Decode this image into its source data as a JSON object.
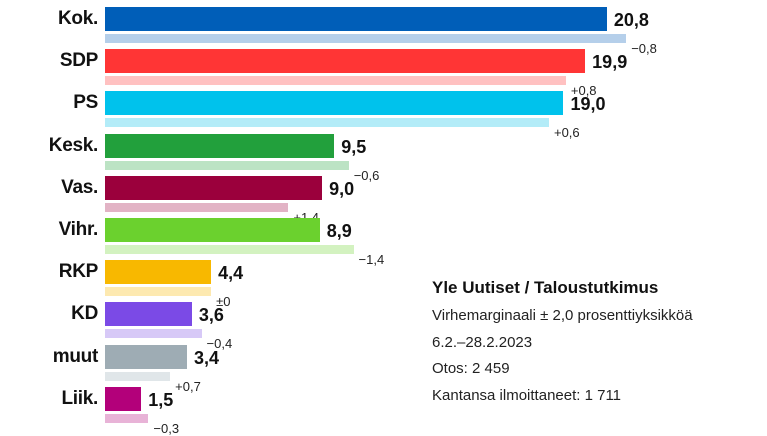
{
  "chart_data": {
    "type": "bar",
    "orientation": "horizontal",
    "categories": [
      "Kok.",
      "SDP",
      "PS",
      "Kesk.",
      "Vas.",
      "Vihr.",
      "RKP",
      "KD",
      "muut",
      "Liik."
    ],
    "values": [
      20.8,
      19.9,
      19.0,
      9.5,
      9.0,
      8.9,
      4.4,
      3.6,
      3.4,
      1.5
    ],
    "value_labels": [
      "20,8",
      "19,9",
      "19,0",
      "9,5",
      "9,0",
      "8,9",
      "4,4",
      "3,6",
      "3,4",
      "1,5"
    ],
    "changes": [
      -0.8,
      0.8,
      0.6,
      -0.6,
      1.4,
      -1.4,
      0.0,
      -0.4,
      0.7,
      -0.3
    ],
    "change_labels": [
      "−0,8",
      "+0,8",
      "+0,6",
      "−0,6",
      "+1,4",
      "−1,4",
      "±0",
      "−0,4",
      "+0,7",
      "−0,3"
    ],
    "colors": [
      "#005eb8",
      "#ff3535",
      "#00c2ec",
      "#22a03c",
      "#9b003c",
      "#6bd12e",
      "#f8b800",
      "#7b4ae6",
      "#9eacb4",
      "#b3007a"
    ],
    "light_colors": [
      "#b5cfea",
      "#ffc1c1",
      "#b3ecf8",
      "#bce3c4",
      "#e2b3c5",
      "#d3f2c0",
      "#fde9b0",
      "#d7c9f7",
      "#e0e6e9",
      "#e8b3d7"
    ],
    "xlim": [
      0,
      22
    ],
    "grid": false,
    "legend": "none"
  },
  "info": {
    "title": "Yle Uutiset / Taloustutkimus",
    "lines": [
      "Virhemarginaali ± 2,0 prosenttiyksikköä",
      "6.2.–28.2.2023",
      "Otos: 2 459",
      "Kantansa ilmoittaneet: 1 711"
    ]
  }
}
